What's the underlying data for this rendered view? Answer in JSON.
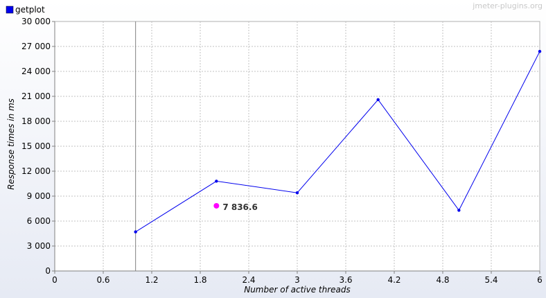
{
  "chart_data": {
    "type": "line",
    "title": "",
    "xlabel": "Number of active threads",
    "ylabel": "Response times in ms",
    "xlim": [
      0,
      6
    ],
    "ylim": [
      0,
      30000
    ],
    "x_ticks": [
      0,
      0.6,
      1.2,
      1.8,
      2.4,
      3,
      3.6,
      4.2,
      4.8,
      5.4,
      6
    ],
    "x_tick_labels": [
      "0",
      "0.6",
      "1.2",
      "1.8",
      "2.4",
      "3",
      "3.6",
      "4.2",
      "4.8",
      "5.4",
      "6"
    ],
    "y_ticks": [
      0,
      3000,
      6000,
      9000,
      12000,
      15000,
      18000,
      21000,
      24000,
      27000,
      30000
    ],
    "y_tick_labels": [
      "0",
      "3 000",
      "6 000",
      "9 000",
      "12 000",
      "15 000",
      "18 000",
      "21 000",
      "24 000",
      "27 000",
      "30 000"
    ],
    "grid": true,
    "legend_position": "top-left",
    "series": [
      {
        "name": "getplot",
        "color": "#0000ee",
        "x": [
          1,
          2,
          3,
          4,
          5,
          6
        ],
        "y": [
          4700,
          10800,
          9400,
          20600,
          7300,
          26400
        ]
      }
    ],
    "reference_line": {
      "x": 1,
      "color": "#808080"
    },
    "annotations": [
      {
        "x": 2,
        "y": 7836.6,
        "text": "7 836.6",
        "marker_color": "#ff00ff"
      }
    ]
  },
  "watermark": "jmeter-plugins.org"
}
